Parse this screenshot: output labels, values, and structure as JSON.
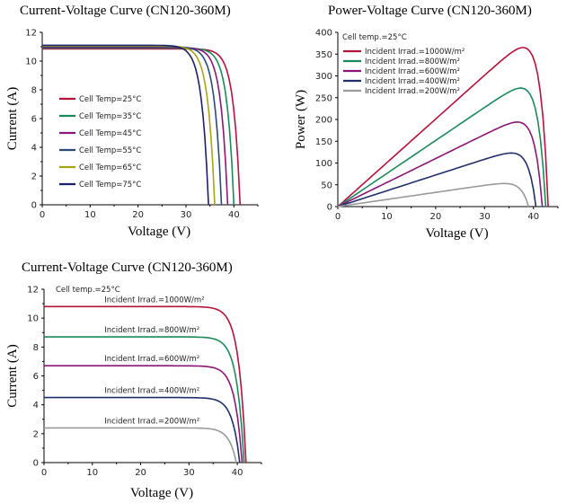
{
  "colors": {
    "red": "#b5123a",
    "green": "#1b8a5a",
    "purple": "#8a1677",
    "navy": "#1f2f6b",
    "blue": "#2a4a7a",
    "olive": "#a8a418",
    "darknavy": "#1c2068",
    "gray": "#9a9a9a"
  },
  "chart_data": [
    {
      "type": "line",
      "title": "Current-Voltage Curve (CN120-360M)",
      "xlabel": "Voltage (V)",
      "ylabel": "Current (A)",
      "xlim": [
        0,
        45
      ],
      "ylim": [
        0,
        12
      ],
      "xticks": [
        "0",
        "10",
        "20",
        "30",
        "40"
      ],
      "yticks": [
        "0",
        "2",
        "4",
        "6",
        "8",
        "10",
        "12"
      ],
      "legend_title": "",
      "series": [
        {
          "name": "Cell Temp=25°C",
          "color": "#b5123a",
          "isc": 10.85,
          "voc": 41.3
        },
        {
          "name": "Cell Temp=35°C",
          "color": "#1b8a5a",
          "isc": 10.9,
          "voc": 40.0
        },
        {
          "name": "Cell Temp=45°C",
          "color": "#8a1677",
          "isc": 10.95,
          "voc": 38.7
        },
        {
          "name": "Cell Temp=55°C",
          "color": "#2a4a7a",
          "isc": 11.0,
          "voc": 37.4
        },
        {
          "name": "Cell Temp=65°C",
          "color": "#a8a418",
          "isc": 11.05,
          "voc": 36.0
        },
        {
          "name": "Cell Temp=75°C",
          "color": "#1c2068",
          "isc": 11.1,
          "voc": 34.7
        }
      ]
    },
    {
      "type": "line",
      "title": "Power-Voltage Curve (CN120-360M)",
      "xlabel": "Voltage (V)",
      "ylabel": "Power (W)",
      "xlim": [
        0,
        45
      ],
      "ylim": [
        0,
        400
      ],
      "xticks": [
        "0",
        "10",
        "20",
        "30",
        "40"
      ],
      "yticks": [
        "0",
        "50",
        "100",
        "150",
        "200",
        "250",
        "300",
        "350",
        "400"
      ],
      "legend_title": "Cell temp.=25°C",
      "series": [
        {
          "name": "Incident Irrad.=1000W/m²",
          "color": "#b5123a",
          "vmp": 36.0,
          "pmax": 365,
          "voc": 43.0
        },
        {
          "name": "Incident Irrad.=800W/m²",
          "color": "#1b8a5a",
          "vmp": 35.0,
          "pmax": 272,
          "voc": 42.5
        },
        {
          "name": "Incident Irrad.=600W/m²",
          "color": "#8a1677",
          "vmp": 34.5,
          "pmax": 194,
          "voc": 41.8
        },
        {
          "name": "Incident Irrad.=400W/m²",
          "color": "#1f2f6b",
          "vmp": 33.5,
          "pmax": 123,
          "voc": 40.5
        },
        {
          "name": "Incident Irrad.=200W/m²",
          "color": "#9a9a9a",
          "vmp": 32.5,
          "pmax": 53,
          "voc": 39.0
        }
      ]
    },
    {
      "type": "line",
      "title": "Current-Voltage Curve (CN120-360M)",
      "xlabel": "Voltage (V)",
      "ylabel": "Current (A)",
      "xlim": [
        0,
        45
      ],
      "ylim": [
        0,
        12
      ],
      "xticks": [
        "0",
        "10",
        "20",
        "30",
        "40"
      ],
      "yticks": [
        "0",
        "2",
        "4",
        "6",
        "8",
        "10",
        "12"
      ],
      "legend_title": "Cell temp.=25°C",
      "series": [
        {
          "name": "Incident Irrad.=1000W/m²",
          "color": "#b5123a",
          "isc": 10.8,
          "voc": 41.8
        },
        {
          "name": "Incident Irrad.=800W/m²",
          "color": "#1b8a5a",
          "isc": 8.7,
          "voc": 41.4
        },
        {
          "name": "Incident Irrad.=600W/m²",
          "color": "#8a1677",
          "isc": 6.7,
          "voc": 41.0
        },
        {
          "name": "Incident Irrad.=400W/m²",
          "color": "#1f2f6b",
          "isc": 4.5,
          "voc": 40.5
        },
        {
          "name": "Incident Irrad.=200W/m²",
          "color": "#9a9a9a",
          "isc": 2.4,
          "voc": 39.8
        }
      ]
    }
  ]
}
